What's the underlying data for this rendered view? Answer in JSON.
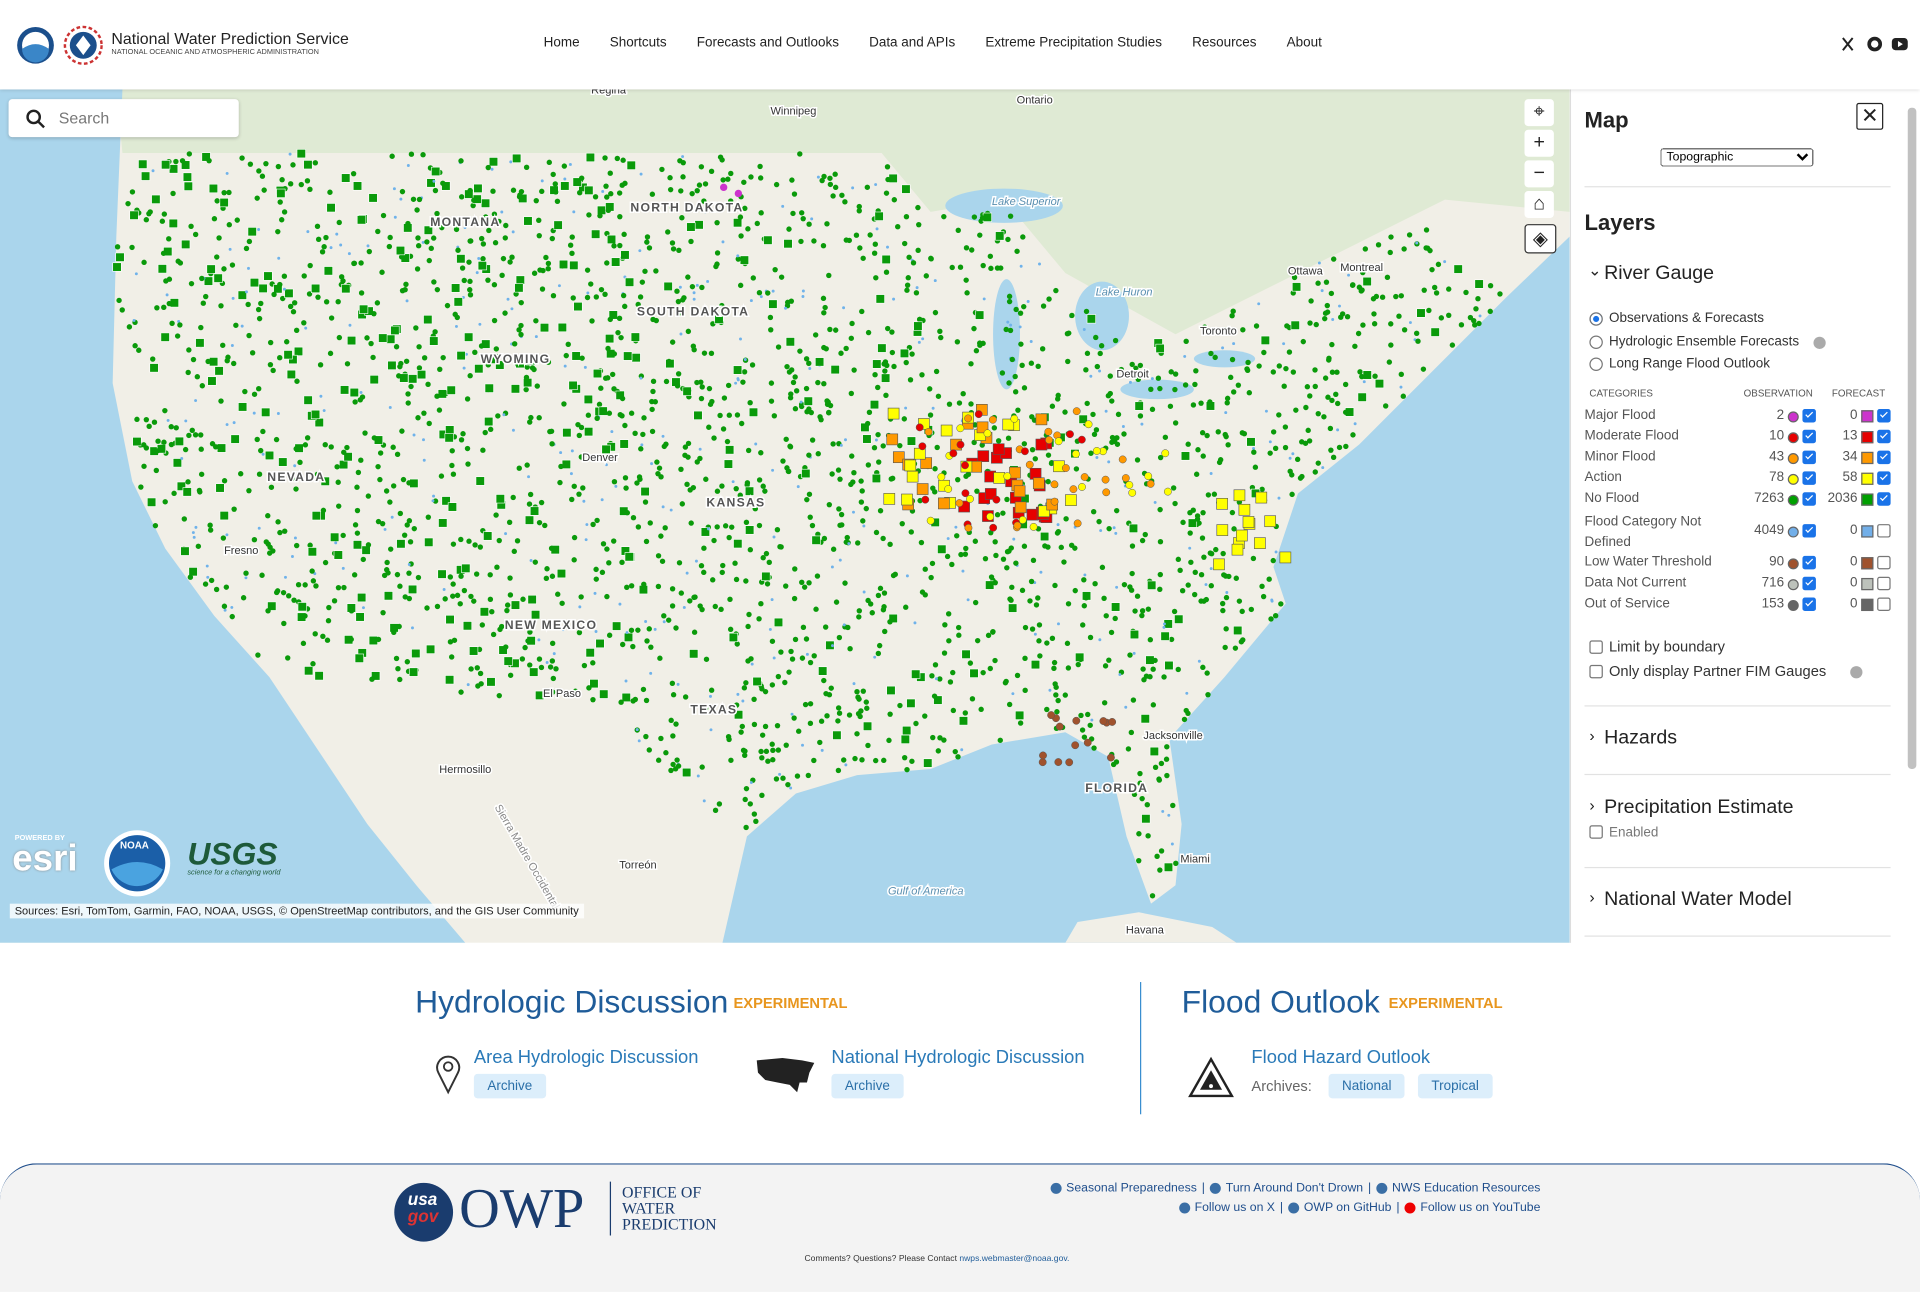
{
  "header": {
    "title": "National Water Prediction Service",
    "subtitle": "NATIONAL OCEANIC AND ATMOSPHERIC ADMINISTRATION",
    "nav": [
      "Home",
      "Shortcuts",
      "Forecasts and Outlooks",
      "Data and APIs",
      "Extreme Precipitation Studies",
      "Resources",
      "About"
    ]
  },
  "map": {
    "search_placeholder": "Search",
    "labels": [
      "Regina",
      "Winnipeg",
      "Ontario",
      "Lake Superior",
      "Ottawa",
      "Montreal",
      "Toronto",
      "Lake Huron",
      "Detroit",
      "MONTANA",
      "NORTH DAKOTA",
      "SOUTH DAKOTA",
      "WYOMING",
      "NEVADA",
      "Denver",
      "KANSAS",
      "Fresno",
      "NEW MEXICO",
      "El Paso",
      "TEXAS",
      "Hermosillo",
      "Torreón",
      "Jacksonville",
      "FLORIDA",
      "Miami",
      "Havana",
      "Gulf of America",
      "Sierra Madre Occidental"
    ],
    "attribution": "Sources: Esri, TomTom, Garmin, FAO, NOAA, USGS, © OpenStreetMap contributors, and the GIS User Community",
    "logos": {
      "esri_powered": "POWERED BY",
      "esri": "esri",
      "noaa": "NOAA",
      "usgs": "USGS",
      "usgs_tagline": "science for a changing world"
    }
  },
  "panel": {
    "title": "Map",
    "basemap": "Topographic",
    "layers_title": "Layers",
    "river_gauge": {
      "title": "River Gauge",
      "modes": [
        "Observations & Forecasts",
        "Hydrologic Ensemble Forecasts",
        "Long Range Flood Outlook"
      ],
      "columns": [
        "CATEGORIES",
        "OBSERVATION",
        "FORECAST"
      ],
      "categories": [
        {
          "name": "Major Flood",
          "observation": 2,
          "forecast": 0,
          "color": "#cc33cc"
        },
        {
          "name": "Moderate Flood",
          "observation": 10,
          "forecast": 13,
          "color": "#e60000"
        },
        {
          "name": "Minor Flood",
          "observation": 43,
          "forecast": 34,
          "color": "#ff9900"
        },
        {
          "name": "Action",
          "observation": 78,
          "forecast": 58,
          "color": "#ffff00"
        },
        {
          "name": "No Flood",
          "observation": 7263,
          "forecast": 2036,
          "color": "#00a000"
        },
        {
          "name": "Flood Category Not Defined",
          "observation": 4049,
          "forecast": 0,
          "color": "#72afe9"
        },
        {
          "name": "Low Water Threshold",
          "observation": 90,
          "forecast": 0,
          "color": "#a0522d"
        },
        {
          "name": "Data Not Current",
          "observation": 716,
          "forecast": 0,
          "color": "#bdc2bb"
        },
        {
          "name": "Out of Service",
          "observation": 153,
          "forecast": 0,
          "color": "#666666"
        }
      ],
      "options": [
        "Limit by boundary",
        "Only display Partner FIM Gauges"
      ]
    },
    "sections": [
      {
        "title": "Hazards"
      },
      {
        "title": "Precipitation Estimate",
        "option": "Enabled"
      },
      {
        "title": "National Water Model"
      }
    ]
  },
  "discussion": {
    "hydrologic": {
      "title": "Hydrologic Discussion",
      "tag": "EXPERIMENTAL",
      "links": [
        {
          "title": "Area Hydrologic Discussion",
          "button": "Archive"
        },
        {
          "title": "National Hydrologic Discussion",
          "button": "Archive"
        }
      ]
    },
    "flood": {
      "title": "Flood Outlook",
      "tag": "EXPERIMENTAL",
      "link": "Flood Hazard Outlook",
      "archives_label": "Archives:",
      "archives": [
        "National",
        "Tropical"
      ]
    }
  },
  "footer": {
    "logo_usa": "usa",
    "logo_gov": "gov",
    "logo_owp": "OWP",
    "office": [
      "OFFICE OF",
      "WATER",
      "PREDICTION"
    ],
    "links_row1": [
      "Seasonal Preparedness",
      "Turn Around Don't Drown",
      "NWS Education Resources"
    ],
    "links_row2": [
      "Follow us on X",
      "OWP on GitHub",
      "Follow us on YouTube"
    ],
    "contact": "Comments? Questions? Please Contact",
    "email": "nwps.webmaster@noaa.gov."
  }
}
